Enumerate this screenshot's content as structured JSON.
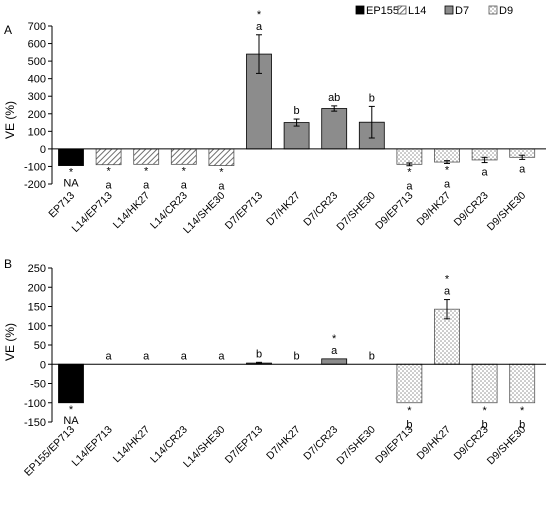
{
  "legend": [
    {
      "name": "EP155",
      "pattern": "solid-black"
    },
    {
      "name": "L14",
      "pattern": "diagonal-hatch"
    },
    {
      "name": "D7",
      "pattern": "solid-gray"
    },
    {
      "name": "D9",
      "pattern": "dots"
    }
  ],
  "colors": {
    "ep155": "#000000",
    "d7": "#8c8c8c",
    "hatch": "#707070",
    "dots": "#8a8a8a"
  },
  "chart_data": [
    {
      "type": "bar",
      "panel": "A",
      "ylabel": "VE (%)",
      "ylim": [
        -200,
        700
      ],
      "yticks": [
        -200,
        -100,
        0,
        100,
        200,
        300,
        400,
        500,
        600,
        700
      ],
      "grid": false,
      "legend_position": "top-right",
      "categories": [
        "EP713",
        "L14/EP713",
        "L14/HK27",
        "L14/CR23",
        "L14/SHE30",
        "D7/EP713",
        "D7/HK27",
        "D7/CR23",
        "D7/SHE30",
        "D9/EP713",
        "D9/HK27",
        "D9/CR23",
        "D9/SHE30"
      ],
      "groups": [
        "EP155",
        "L14",
        "L14",
        "L14",
        "L14",
        "D7",
        "D7",
        "D7",
        "D7",
        "D9",
        "D9",
        "D9",
        "D9"
      ],
      "values": [
        -95,
        -90,
        -88,
        -88,
        -95,
        540,
        150,
        230,
        152,
        -88,
        -75,
        -63,
        -48
      ],
      "errors": [
        0,
        0,
        0,
        0,
        0,
        110,
        20,
        15,
        90,
        8,
        8,
        15,
        12
      ],
      "stars": [
        "*",
        "*",
        "*",
        "*",
        "*",
        "*",
        "",
        "",
        "",
        "*",
        "*",
        "",
        ""
      ],
      "letters": [
        "NA",
        "a",
        "a",
        "a",
        "a",
        "a",
        "b",
        "ab",
        "b",
        "a",
        "a",
        "a",
        "a"
      ]
    },
    {
      "type": "bar",
      "panel": "B",
      "ylabel": "VE (%)",
      "ylim": [
        -150,
        250
      ],
      "yticks": [
        -150,
        -100,
        -50,
        0,
        50,
        100,
        150,
        200,
        250
      ],
      "grid": false,
      "categories": [
        "EP155/EP713",
        "L14/EP713",
        "L14/HK27",
        "L14/CR23",
        "L14/SHE30",
        "D7/EP713",
        "D7/HK27",
        "D7/CR23",
        "D7/SHE30",
        "D9/EP713",
        "D9/HK27",
        "D9/CR23",
        "D9/SHE30"
      ],
      "groups": [
        "EP155",
        "L14",
        "L14",
        "L14",
        "L14",
        "D7",
        "D7",
        "D7",
        "D7",
        "D9",
        "D9",
        "D9",
        "D9"
      ],
      "values": [
        -100,
        0,
        0,
        0,
        0,
        3,
        0,
        14,
        0,
        -100,
        143,
        -100,
        -100
      ],
      "errors": [
        0,
        0,
        0,
        0,
        0,
        2,
        0,
        0,
        0,
        0,
        25,
        0,
        0
      ],
      "stars": [
        "*",
        "",
        "",
        "",
        "",
        "",
        "",
        "*",
        "",
        "*",
        "*",
        "*",
        "*"
      ],
      "letters": [
        "NA",
        "a",
        "a",
        "a",
        "a",
        "b",
        "b",
        "a",
        "b",
        "b",
        "a",
        "b",
        "b"
      ]
    }
  ]
}
